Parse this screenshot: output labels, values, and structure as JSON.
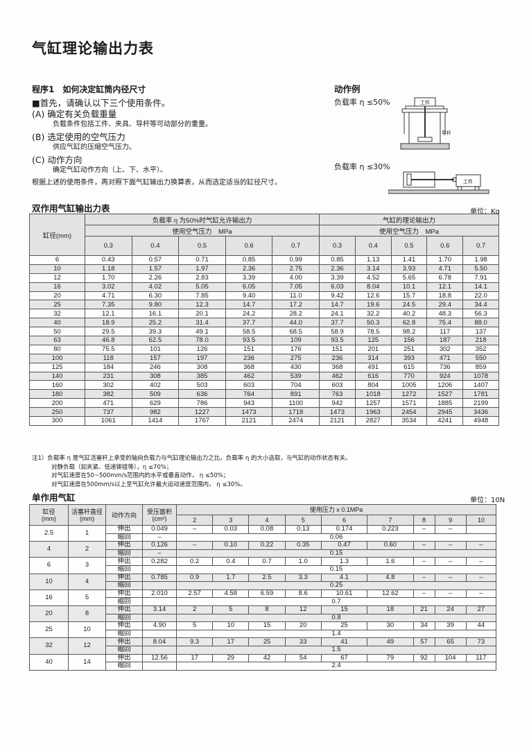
{
  "title": "气缸理论输出力表",
  "step1": {
    "heading": "程序1　如何决定缸筒内径尺寸",
    "lead": "■首先，请确认以下三个使用条件。",
    "conditions": [
      {
        "label": "(A) 确定有关负载重量",
        "desc": "负载条件包括工件、夹具、导杆等可动部分的重量。"
      },
      {
        "label": "(B) 选定使用的空气压力",
        "desc": "供应气缸的压缩空气压力。"
      },
      {
        "label": "(C) 动作方向",
        "desc": "确定气缸动作方向（上、下、水平）。"
      }
    ],
    "conclusion": "根据上述的使用条件，再对照下面气缸输出力换算表，从而选定适当的缸径尺寸。"
  },
  "examples": {
    "title": "动作例",
    "ex1": "负载率 η ≤50%",
    "ex2": "负载率 η ≤30%",
    "workpiece": "工件",
    "guide_rod": "导杆"
  },
  "table1": {
    "title": "双作用气缸输出力表",
    "unit": "单位：Kg",
    "bore_header": "缸径(mm)",
    "group1": "负载率 η 为50%时气缸允许输出力",
    "group2": "气缸的理论输出力",
    "pressure_label": "使用空气压力　MPa",
    "pressures": [
      "0.3",
      "0.4",
      "0.5",
      "0.6",
      "0.7"
    ],
    "rows": [
      [
        "6",
        "0.43",
        "0.57",
        "0.71",
        "0.85",
        "0.99",
        "0.85",
        "1.13",
        "1.41",
        "1.70",
        "1.98"
      ],
      [
        "10",
        "1.18",
        "1.57",
        "1.97",
        "2.36",
        "2.75",
        "2.36",
        "3.14",
        "3.93",
        "4.71",
        "5.50"
      ],
      [
        "12",
        "1.70",
        "2.26",
        "2.83",
        "3.39",
        "4.00",
        "3.39",
        "4.52",
        "5.65",
        "6.78",
        "7.91"
      ],
      [
        "16",
        "3.02",
        "4.02",
        "5.05",
        "6.05",
        "7.05",
        "6.03",
        "8.04",
        "10.1",
        "12.1",
        "14.1"
      ],
      [
        "20",
        "4.71",
        "6.30",
        "7.85",
        "9.40",
        "11.0",
        "9.42",
        "12.6",
        "15.7",
        "18.8",
        "22.0"
      ],
      [
        "25",
        "7.35",
        "9.80",
        "12.3",
        "14.7",
        "17.2",
        "14.7",
        "19.6",
        "24.5",
        "29.4",
        "34.4"
      ],
      [
        "32",
        "12.1",
        "16.1",
        "20.1",
        "24.2",
        "28.2",
        "24.1",
        "32.2",
        "40.2",
        "48.3",
        "56.3"
      ],
      [
        "40",
        "18.9",
        "25.2",
        "31.4",
        "37.7",
        "44.0",
        "37.7",
        "50.3",
        "62.8",
        "75.4",
        "88.0"
      ],
      [
        "50",
        "29.5",
        "39.3",
        "49.1",
        "58.5",
        "68.5",
        "58.9",
        "78.5",
        "98.2",
        "117",
        "137"
      ],
      [
        "63",
        "46.8",
        "62.5",
        "78.0",
        "93.5",
        "109",
        "93.5",
        "125",
        "156",
        "187",
        "218"
      ],
      [
        "80",
        "75.5",
        "101",
        "126",
        "151",
        "176",
        "151",
        "201",
        "251",
        "302",
        "352"
      ],
      [
        "100",
        "118",
        "157",
        "197",
        "236",
        "275",
        "236",
        "314",
        "393",
        "471",
        "550"
      ],
      [
        "125",
        "184",
        "246",
        "308",
        "368",
        "430",
        "368",
        "491",
        "615",
        "736",
        "859"
      ],
      [
        "140",
        "231",
        "308",
        "385",
        "462",
        "539",
        "462",
        "616",
        "770",
        "924",
        "1078"
      ],
      [
        "160",
        "302",
        "402",
        "503",
        "603",
        "704",
        "603",
        "804",
        "1005",
        "1206",
        "1407"
      ],
      [
        "180",
        "382",
        "509",
        "636",
        "764",
        "891",
        "763",
        "1018",
        "1272",
        "1527",
        "1781"
      ],
      [
        "200",
        "471",
        "629",
        "786",
        "943",
        "1100",
        "942",
        "1257",
        "1571",
        "1885",
        "2199"
      ],
      [
        "250",
        "737",
        "982",
        "1227",
        "1473",
        "1718",
        "1473",
        "1963",
        "2454",
        "2945",
        "3436"
      ],
      [
        "300",
        "1061",
        "1414",
        "1767",
        "2121",
        "2474",
        "2121",
        "2827",
        "3534",
        "4241",
        "4948"
      ]
    ]
  },
  "notes": [
    "注1）负载率 η 是气缸活塞杆上承受的轴向负载力与气缸理论输出力之比。负载率 η 的大小选取，与气缸的动作状态有关。",
    "对静负载（如夹紧、低速铆接等），η ≤70%；",
    "对气缸速度在50~500mm/s范围内的水平或垂直动作， η ≤50%；",
    "对气缸速度在500mm/s以上至气缸允许最大运动速度范围内， η ≤30%。"
  ],
  "table2": {
    "title": "单作用气缸",
    "unit": "单位：10N",
    "headers": {
      "bore": "缸径",
      "bore_unit": "(mm)",
      "rod": "活塞杆直径",
      "rod_unit": "(mm)",
      "direction": "动作方向",
      "area": "受压面积",
      "area_unit": "(cm²)",
      "pressure": "使用压力 x 0.1MPa"
    },
    "pressures": [
      "2",
      "3",
      "4",
      "5",
      "6",
      "7",
      "8",
      "9",
      "10"
    ],
    "extend": "伸出",
    "retract": "缩回",
    "rows": [
      {
        "bore": "2.5",
        "rod": "1",
        "area": "0.049",
        "out": [
          "–",
          "0.03",
          "0.08",
          "0.13",
          "0.174",
          "0.223",
          "–",
          "–",
          ""
        ],
        "ret_area": "–",
        "ret": "0.06"
      },
      {
        "bore": "4",
        "rod": "2",
        "area": "0.126",
        "out": [
          "–",
          "0.10",
          "0.22",
          "0.35",
          "0.47",
          "0.60",
          "–",
          "–",
          "–"
        ],
        "ret_area": "–",
        "ret": "0.15"
      },
      {
        "bore": "6",
        "rod": "3",
        "area": "0.282",
        "out": [
          "0.2",
          "0.4",
          "0.7",
          "1.0",
          "1.3",
          "1.6",
          "–",
          "–",
          "–"
        ],
        "ret_area": "",
        "ret": "0.15"
      },
      {
        "bore": "10",
        "rod": "4",
        "area": "0.785",
        "out": [
          "0.9",
          "1.7",
          "2.5",
          "3.3",
          "4.1",
          "4.8",
          "–",
          "–",
          "–"
        ],
        "ret_area": "",
        "ret": "0.25"
      },
      {
        "bore": "16",
        "rod": "5",
        "area": "2.010",
        "out": [
          "2.57",
          "4.58",
          "6.59",
          "8.6",
          "10.61",
          "12.62",
          "–",
          "–",
          "–"
        ],
        "ret_area": "",
        "ret": "0.7"
      },
      {
        "bore": "20",
        "rod": "8",
        "area": "3.14",
        "out": [
          "2",
          "5",
          "8",
          "12",
          "15",
          "18",
          "21",
          "24",
          "27"
        ],
        "ret_area": "",
        "ret": "0.8"
      },
      {
        "bore": "25",
        "rod": "10",
        "area": "4.90",
        "out": [
          "5",
          "10",
          "15",
          "20",
          "25",
          "30",
          "34",
          "39",
          "44"
        ],
        "ret_area": "",
        "ret": "1.4"
      },
      {
        "bore": "32",
        "rod": "12",
        "area": "8.04",
        "out": [
          "9.3",
          "17",
          "25",
          "33",
          "41",
          "49",
          "57",
          "65",
          "73"
        ],
        "ret_area": "",
        "ret": "1.5"
      },
      {
        "bore": "40",
        "rod": "14",
        "area": "12.56",
        "out": [
          "17",
          "29",
          "42",
          "54",
          "67",
          "79",
          "92",
          "104",
          "117"
        ],
        "ret_area": "",
        "ret": "2.4"
      }
    ]
  }
}
